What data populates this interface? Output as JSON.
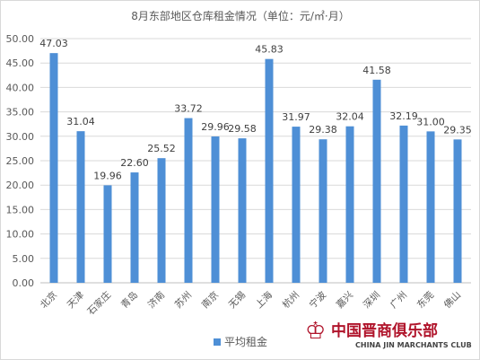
{
  "chart_data": {
    "type": "bar",
    "title": "8月东部地区仓库租金情况（单位：元/㎡·月）",
    "categories": [
      "北京",
      "天津",
      "石家庄",
      "青岛",
      "济南",
      "苏州",
      "南京",
      "无锡",
      "上海",
      "杭州",
      "宁波",
      "嘉兴",
      "深圳",
      "广州",
      "东莞",
      "佛山"
    ],
    "series": [
      {
        "name": "平均租金",
        "values": [
          47.03,
          31.04,
          19.96,
          22.6,
          25.52,
          33.72,
          29.96,
          29.58,
          45.83,
          31.97,
          29.38,
          32.04,
          41.58,
          32.19,
          31.0,
          29.35
        ]
      }
    ],
    "data_labels": [
      "47.03",
      "31.04",
      "19.96",
      "22.60",
      "25.52",
      "33.72",
      "29.96",
      "29.58",
      "45.83",
      "31.97",
      "29.38",
      "32.04",
      "41.58",
      "32.19",
      "31.00",
      "29.35"
    ],
    "ylim": [
      0,
      50
    ],
    "yticks": [
      "0.00",
      "5.00",
      "10.00",
      "15.00",
      "20.00",
      "25.00",
      "30.00",
      "35.00",
      "40.00",
      "45.00",
      "50.00"
    ],
    "bar_color": "#4e8fd6",
    "grid": true,
    "legend_position": "bottom"
  },
  "watermark": {
    "cn": "中国晋商俱乐部",
    "en": "CHINA JIN MARCHANTS CLUB"
  }
}
